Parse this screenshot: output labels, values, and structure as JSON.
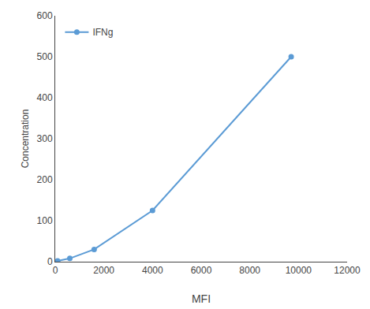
{
  "chart_data": {
    "type": "line",
    "x": [
      100,
      600,
      1600,
      4000,
      9700
    ],
    "series": [
      {
        "name": "IFNg",
        "color": "#5b9bd5",
        "values": [
          2,
          8,
          30,
          125,
          500
        ],
        "marker": "circle",
        "line_style": "solid"
      }
    ],
    "xlabel": "MFI",
    "ylabel": "Concentration",
    "xlim": [
      0,
      12000
    ],
    "ylim": [
      0,
      600
    ],
    "xticks": [
      0,
      2000,
      4000,
      6000,
      8000,
      10000,
      12000
    ],
    "yticks": [
      0,
      100,
      200,
      300,
      400,
      500,
      600
    ],
    "grid": false,
    "legend": "upper left"
  }
}
